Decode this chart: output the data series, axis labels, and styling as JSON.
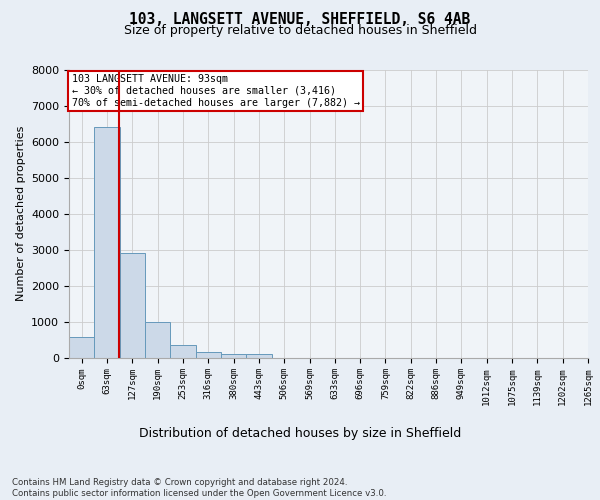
{
  "title_line1": "103, LANGSETT AVENUE, SHEFFIELD, S6 4AB",
  "title_line2": "Size of property relative to detached houses in Sheffield",
  "xlabel": "Distribution of detached houses by size in Sheffield",
  "ylabel": "Number of detached properties",
  "bar_values": [
    580,
    6420,
    2920,
    990,
    360,
    165,
    100,
    95,
    0,
    0,
    0,
    0,
    0,
    0,
    0,
    0,
    0,
    0,
    0,
    0
  ],
  "bin_labels": [
    "0sqm",
    "63sqm",
    "127sqm",
    "190sqm",
    "253sqm",
    "316sqm",
    "380sqm",
    "443sqm",
    "506sqm",
    "569sqm",
    "633sqm",
    "696sqm",
    "759sqm",
    "822sqm",
    "886sqm",
    "949sqm",
    "1012sqm",
    "1075sqm",
    "1139sqm",
    "1202sqm",
    "1265sqm"
  ],
  "bar_color": "#ccd9e8",
  "bar_edge_color": "#6699bb",
  "vline_x": 1.48,
  "vline_color": "#cc0000",
  "ylim": [
    0,
    8000
  ],
  "yticks": [
    0,
    1000,
    2000,
    3000,
    4000,
    5000,
    6000,
    7000,
    8000
  ],
  "annotation_text": "103 LANGSETT AVENUE: 93sqm\n← 30% of detached houses are smaller (3,416)\n70% of semi-detached houses are larger (7,882) →",
  "annotation_box_color": "#ffffff",
  "annotation_box_edge": "#cc0000",
  "footnote": "Contains HM Land Registry data © Crown copyright and database right 2024.\nContains public sector information licensed under the Open Government Licence v3.0.",
  "bg_color": "#e8eef5",
  "plot_bg_color": "#f0f4f8",
  "grid_color": "#cccccc"
}
